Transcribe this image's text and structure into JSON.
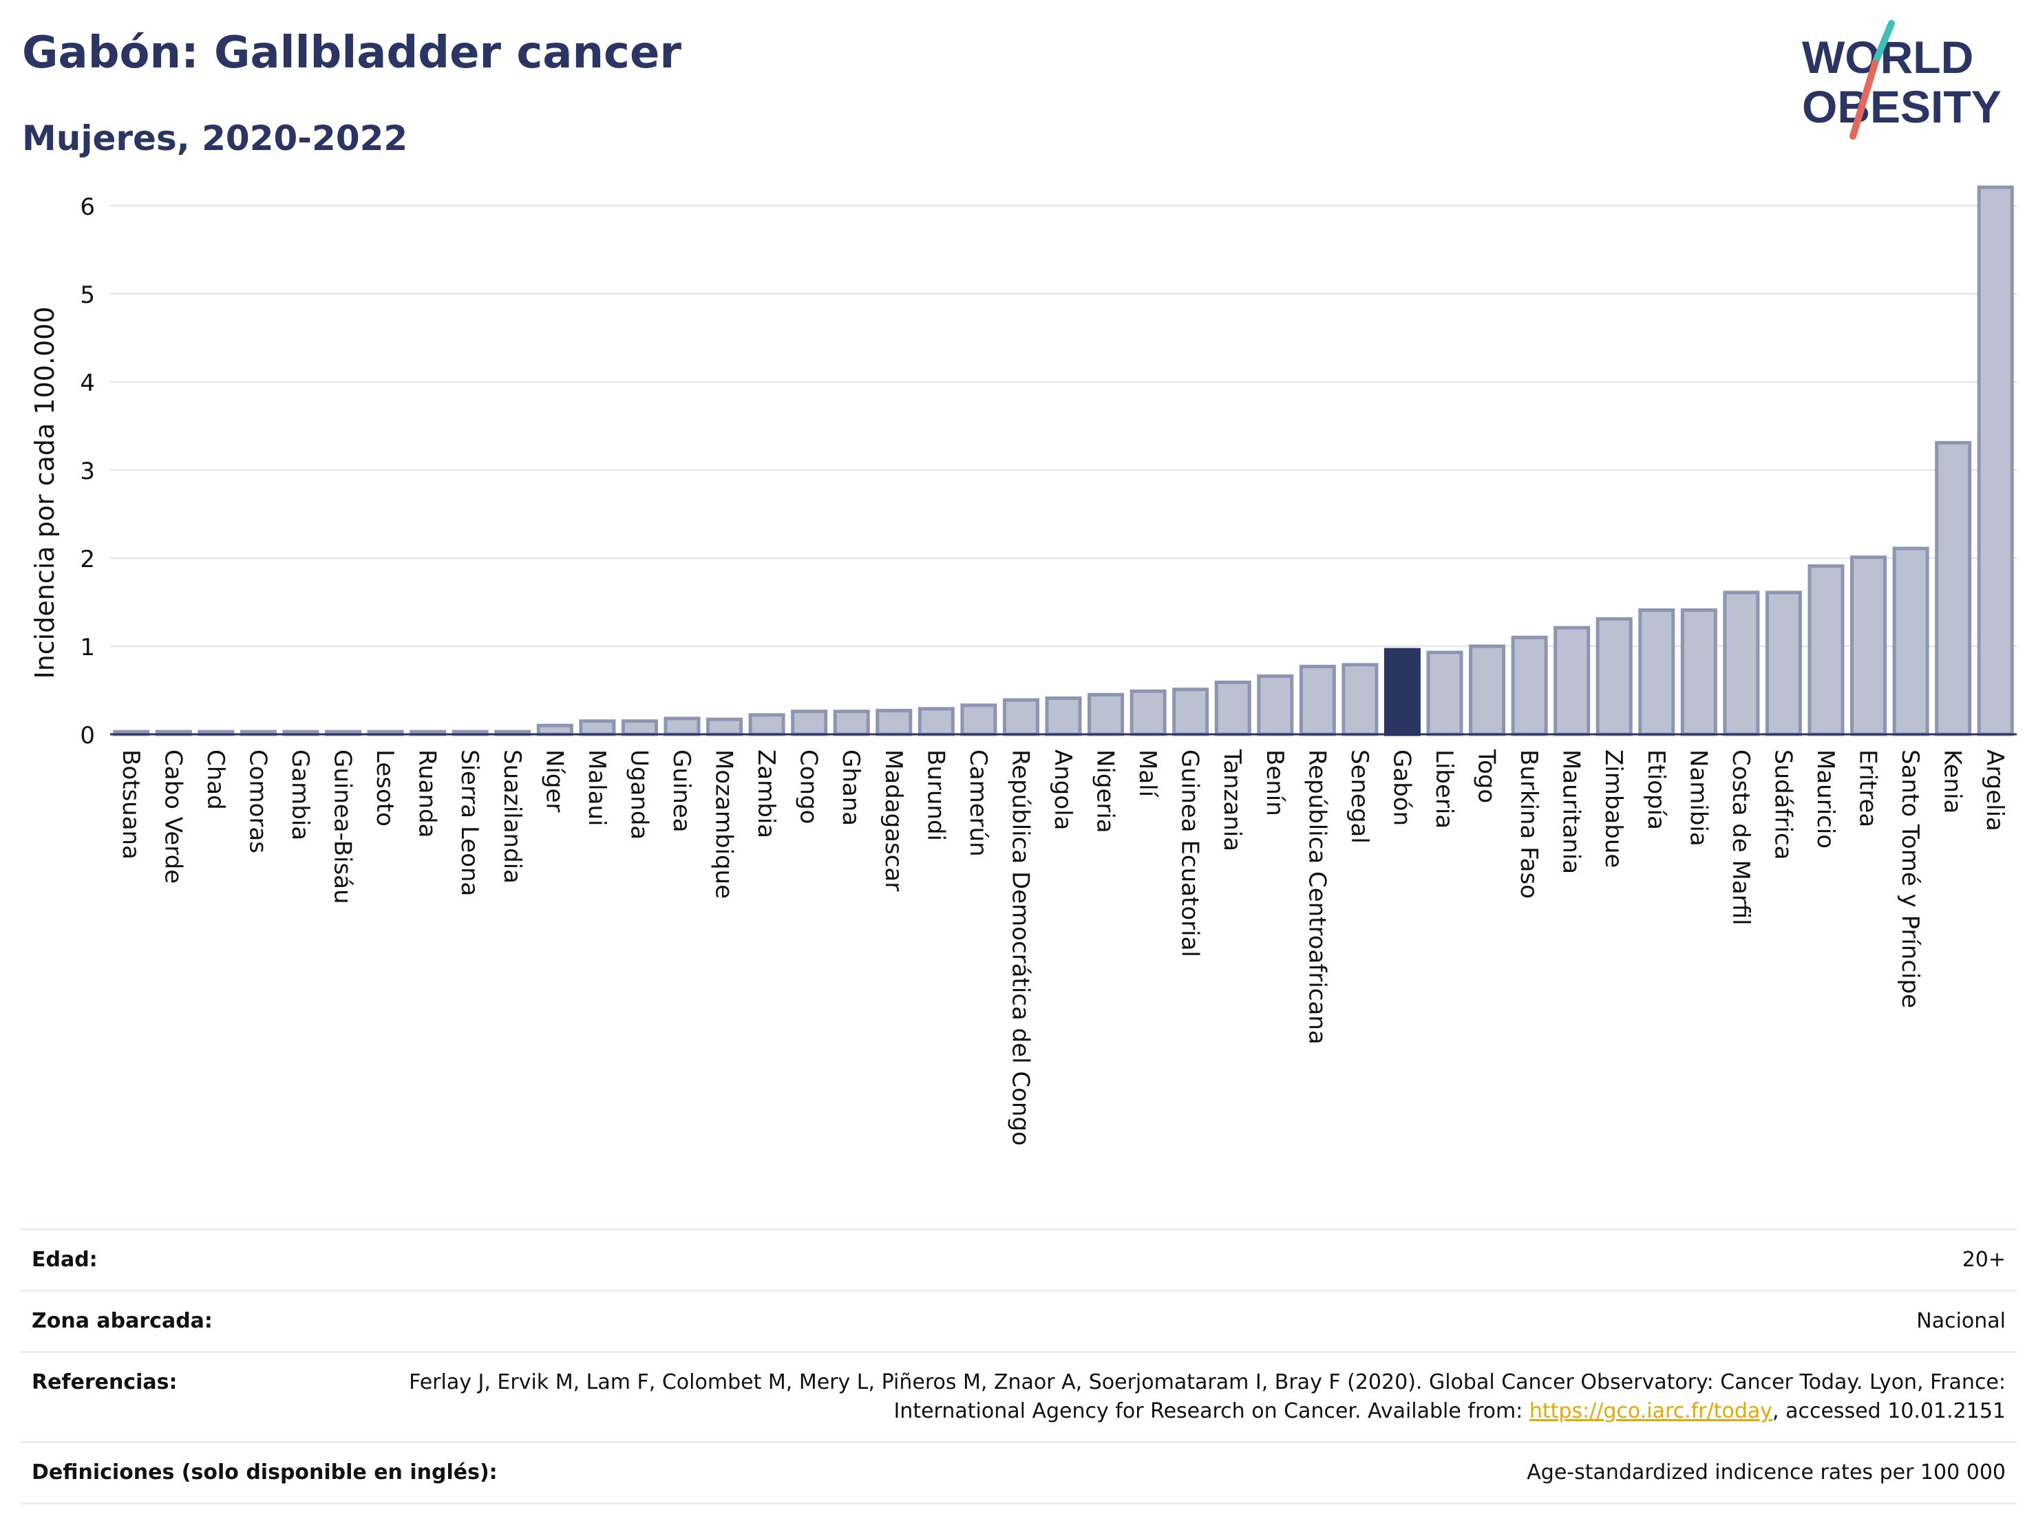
{
  "header": {
    "title": "Gabón: Gallbladder cancer",
    "subtitle": "Mujeres, 2020-2022"
  },
  "logo": {
    "line1": "WORLD",
    "line2": "OBESITY",
    "colors": {
      "text": "#2a3563",
      "slash_top": "#3ec1b8",
      "slash_bottom": "#e8675b"
    }
  },
  "colors": {
    "bar": "#bcc1d1",
    "bar_stroke": "#8e95b3",
    "highlight": "#2a3563",
    "grid": "#e6e8ee"
  },
  "chart_data": {
    "type": "bar",
    "ylabel": "Incidencia por cada 100.000",
    "xlabel": "",
    "ylim": [
      0,
      6.5
    ],
    "yticks": [
      0,
      1,
      2,
      3,
      4,
      5,
      6
    ],
    "grid": true,
    "highlight": "Gabón",
    "categories": [
      "Botsuana",
      "Cabo Verde",
      "Chad",
      "Comoras",
      "Gambia",
      "Guinea-Bisáu",
      "Lesoto",
      "Ruanda",
      "Sierra Leona",
      "Suazilandia",
      "Níger",
      "Malaui",
      "Uganda",
      "Guinea",
      "Mozambique",
      "Zambia",
      "Congo",
      "Ghana",
      "Madagascar",
      "Burundi",
      "Camerún",
      "República Democrática del Congo",
      "Angola",
      "Nigeria",
      "Malí",
      "Guinea Ecuatorial",
      "Tanzania",
      "Benín",
      "República Centroafricana",
      "Senegal",
      "Gabón",
      "Liberia",
      "Togo",
      "Burkina Faso",
      "Mauritania",
      "Zimbabue",
      "Etiopía",
      "Namibia",
      "Costa de Marfil",
      "Sudáfrica",
      "Mauricio",
      "Eritrea",
      "Santo Tomé y Príncipe",
      "Kenia",
      "Argelia"
    ],
    "values": [
      0.03,
      0.03,
      0.03,
      0.03,
      0.03,
      0.03,
      0.03,
      0.03,
      0.03,
      0.03,
      0.1,
      0.15,
      0.15,
      0.18,
      0.17,
      0.22,
      0.26,
      0.26,
      0.27,
      0.29,
      0.33,
      0.39,
      0.41,
      0.45,
      0.49,
      0.51,
      0.59,
      0.66,
      0.77,
      0.79,
      0.96,
      0.93,
      1.0,
      1.1,
      1.21,
      1.31,
      1.41,
      1.41,
      1.61,
      1.61,
      1.91,
      2.01,
      2.11,
      3.31,
      6.21
    ]
  },
  "info": [
    {
      "key": "Edad:",
      "value": "20+"
    },
    {
      "key": "Zona abarcada:",
      "value": "Nacional"
    },
    {
      "key": "Referencias:",
      "value_before": "Ferlay J, Ervik M, Lam F, Colombet M, Mery L, Piñeros M, Znaor A, Soerjomataram I, Bray F (2020). Global Cancer Observatory: Cancer Today. Lyon, France: International Agency for Research on Cancer. Available from: ",
      "link": "https://gco.iarc.fr/today",
      "value_after": ", accessed 10.01.2151"
    },
    {
      "key": "Definiciones (solo disponible en inglés):",
      "value": "Age-standardized indicence rates per 100 000"
    }
  ]
}
